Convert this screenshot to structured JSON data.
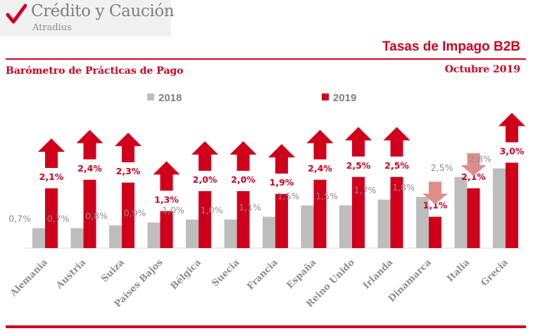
{
  "brand": {
    "name": "Crédito y Caución",
    "sub": "Atradius"
  },
  "header": {
    "title": "Tasas de Impago B2B",
    "subtitle": "Barómetro de Prácticas de Pago",
    "date": "Octubre 2019"
  },
  "colors": {
    "accent": "#d0001d",
    "series2018": "#bdbdbd",
    "series2019": "#d0001d",
    "arrow_up": "#d0001d",
    "arrow_down": "#dd8e8a"
  },
  "chart_data": {
    "type": "bar",
    "title": "Tasas de Impago B2B",
    "ylabel": "",
    "xlabel": "",
    "ylim": [
      0,
      3.3
    ],
    "grid": false,
    "legend": "top-center",
    "categories": [
      "Alemania",
      "Austria",
      "Suiza",
      "Países Bajos",
      "Bélgica",
      "Suecia",
      "Francia",
      "España",
      "Reino Unido",
      "Irlanda",
      "Dinamarca",
      "Italia",
      "Grecia"
    ],
    "series": [
      {
        "name": "2018",
        "values": [
          0.7,
          0.7,
          0.8,
          0.9,
          1.0,
          1.0,
          1.1,
          1.5,
          1.5,
          1.7,
          1.8,
          2.5,
          2.8
        ],
        "labels": [
          "0,7%",
          "0,7%",
          "0,8%",
          "0,9%",
          "1,0%",
          "1,0%",
          "1,1%",
          "1,5%",
          "1,5%",
          "1,7%",
          "1,8%",
          "2,5%",
          "2,8%"
        ]
      },
      {
        "name": "2019",
        "values": [
          2.1,
          2.4,
          2.3,
          1.3,
          2.0,
          2.0,
          1.9,
          2.4,
          2.5,
          2.5,
          1.1,
          2.1,
          3.0
        ],
        "labels": [
          "2,1%",
          "2,4%",
          "2,3%",
          "1,3%",
          "2,0%",
          "2,0%",
          "1,9%",
          "2,4%",
          "2,5%",
          "2,5%",
          "1,1%",
          "2,1%",
          "3,0%"
        ]
      }
    ],
    "trend": [
      "up",
      "up",
      "up",
      "up",
      "up",
      "up",
      "up",
      "up",
      "up",
      "up",
      "down",
      "down",
      "up"
    ]
  }
}
